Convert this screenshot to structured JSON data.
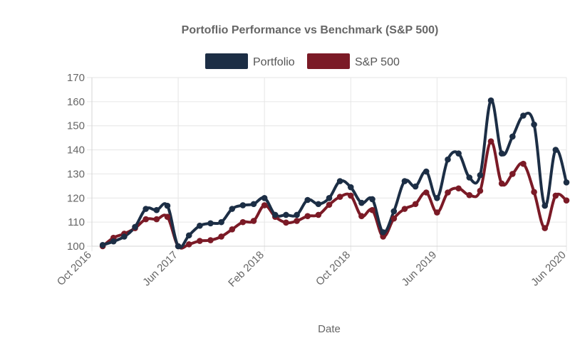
{
  "chart_data": {
    "type": "line",
    "title": "Portoflio Performance vs Benchmark (S&P 500)",
    "xlabel": "Date",
    "ylabel": "",
    "ylim": [
      100,
      170
    ],
    "yticks": [
      100,
      110,
      120,
      130,
      140,
      150,
      160,
      170
    ],
    "xlim": [
      "2016-10",
      "2020-06"
    ],
    "xticks": [
      {
        "date": "2016-10",
        "label": "Oct 2016"
      },
      {
        "date": "2017-06",
        "label": "Jun 2017"
      },
      {
        "date": "2018-02",
        "label": "Feb 2018"
      },
      {
        "date": "2018-10",
        "label": "Oct 2018"
      },
      {
        "date": "2019-06",
        "label": "Jun 2019"
      },
      {
        "date": "2020-06",
        "label": "Jun 2020"
      }
    ],
    "grid": true,
    "legend_position": "top",
    "series": [
      {
        "name": "Portfolio",
        "color": "#1c2e45",
        "points": [
          [
            "2016-11",
            100.5
          ],
          [
            "2016-12",
            102
          ],
          [
            "2017-01",
            104
          ],
          [
            "2017-02",
            108
          ],
          [
            "2017-03",
            115.5
          ],
          [
            "2017-04",
            115
          ],
          [
            "2017-05",
            116.8
          ],
          [
            "2017-06",
            100
          ],
          [
            "2017-07",
            104.5
          ],
          [
            "2017-08",
            108.5
          ],
          [
            "2017-09",
            109.5
          ],
          [
            "2017-10",
            110
          ],
          [
            "2017-11",
            115.5
          ],
          [
            "2017-12",
            117
          ],
          [
            "2018-01",
            117.5
          ],
          [
            "2018-02",
            120
          ],
          [
            "2018-03",
            113
          ],
          [
            "2018-04",
            113
          ],
          [
            "2018-05",
            113
          ],
          [
            "2018-06",
            119.2
          ],
          [
            "2018-07",
            117.5
          ],
          [
            "2018-08",
            120
          ],
          [
            "2018-09",
            127
          ],
          [
            "2018-10",
            124.5
          ],
          [
            "2018-11",
            118
          ],
          [
            "2018-12",
            119.5
          ],
          [
            "2019-01",
            105.8
          ],
          [
            "2019-02",
            114.5
          ],
          [
            "2019-03",
            127
          ],
          [
            "2019-04",
            124.8
          ],
          [
            "2019-05",
            131
          ],
          [
            "2019-06",
            120
          ],
          [
            "2019-07",
            136
          ],
          [
            "2019-08",
            138.5
          ],
          [
            "2019-09",
            128.5
          ],
          [
            "2019-10",
            129.5
          ],
          [
            "2019-11",
            160.5
          ],
          [
            "2019-12",
            138.5
          ],
          [
            "2020-01",
            145.5
          ],
          [
            "2020-02",
            154.2
          ],
          [
            "2020-03",
            150.5
          ],
          [
            "2020-04",
            116.8
          ],
          [
            "2020-05",
            140
          ],
          [
            "2020-06",
            126.5
          ]
        ]
      },
      {
        "name": "S&P 500",
        "color": "#7b1a26",
        "points": [
          [
            "2016-11",
            100
          ],
          [
            "2016-12",
            103.5
          ],
          [
            "2017-01",
            105.2
          ],
          [
            "2017-02",
            107.5
          ],
          [
            "2017-03",
            111.2
          ],
          [
            "2017-04",
            111.2
          ],
          [
            "2017-05",
            112.2
          ],
          [
            "2017-06",
            100
          ],
          [
            "2017-07",
            100.8
          ],
          [
            "2017-08",
            102.2
          ],
          [
            "2017-09",
            102.5
          ],
          [
            "2017-10",
            104
          ],
          [
            "2017-11",
            107
          ],
          [
            "2017-12",
            110
          ],
          [
            "2018-01",
            110.5
          ],
          [
            "2018-02",
            117
          ],
          [
            "2018-03",
            112.2
          ],
          [
            "2018-04",
            109.8
          ],
          [
            "2018-05",
            110.5
          ],
          [
            "2018-06",
            112.5
          ],
          [
            "2018-07",
            113
          ],
          [
            "2018-08",
            117.2
          ],
          [
            "2018-09",
            120.5
          ],
          [
            "2018-10",
            121
          ],
          [
            "2018-11",
            112.5
          ],
          [
            "2018-12",
            115
          ],
          [
            "2019-01",
            104
          ],
          [
            "2019-02",
            111.5
          ],
          [
            "2019-03",
            115.5
          ],
          [
            "2019-04",
            117.5
          ],
          [
            "2019-05",
            122.3
          ],
          [
            "2019-06",
            114
          ],
          [
            "2019-07",
            122.3
          ],
          [
            "2019-08",
            124
          ],
          [
            "2019-09",
            121.2
          ],
          [
            "2019-10",
            123
          ],
          [
            "2019-11",
            143.5
          ],
          [
            "2019-12",
            126
          ],
          [
            "2020-01",
            130
          ],
          [
            "2020-02",
            134.2
          ],
          [
            "2020-03",
            122.5
          ],
          [
            "2020-04",
            107.5
          ],
          [
            "2020-05",
            121
          ],
          [
            "2020-06",
            119
          ]
        ]
      }
    ]
  }
}
